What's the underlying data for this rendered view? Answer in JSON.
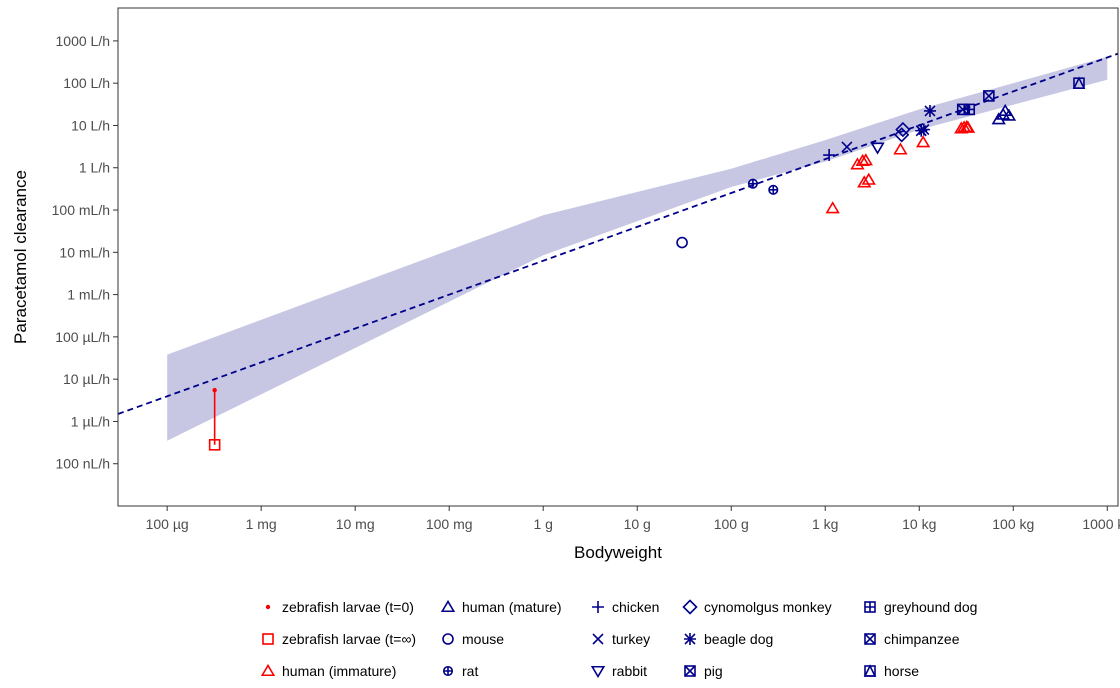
{
  "chart_data": {
    "type": "scatter",
    "title": "",
    "xlabel": "Bodyweight",
    "ylabel": "Paracetamol clearance",
    "x_scale": "log10",
    "y_scale": "log10",
    "x_unit": "kg",
    "y_unit": "L/h",
    "xlim": [
      3e-08,
      1300
    ],
    "ylim": [
      1e-08,
      6000
    ],
    "grid": false,
    "legend_position": "bottom",
    "x_ticks": [
      {
        "value": 1e-07,
        "label": "100 µg"
      },
      {
        "value": 1e-06,
        "label": "1 mg"
      },
      {
        "value": 1e-05,
        "label": "10 mg"
      },
      {
        "value": 0.0001,
        "label": "100 mg"
      },
      {
        "value": 0.001,
        "label": "1 g"
      },
      {
        "value": 0.01,
        "label": "10 g"
      },
      {
        "value": 0.1,
        "label": "100 g"
      },
      {
        "value": 1,
        "label": "1 kg"
      },
      {
        "value": 10,
        "label": "10 kg"
      },
      {
        "value": 100,
        "label": "100 kg"
      },
      {
        "value": 1000,
        "label": "1000 kg"
      }
    ],
    "y_ticks": [
      {
        "value": 1e-07,
        "label": "100 nL/h"
      },
      {
        "value": 1e-06,
        "label": "1 µL/h"
      },
      {
        "value": 1e-05,
        "label": "10 µL/h"
      },
      {
        "value": 0.0001,
        "label": "100 µL/h"
      },
      {
        "value": 0.001,
        "label": "1 mL/h"
      },
      {
        "value": 0.01,
        "label": "10 mL/h"
      },
      {
        "value": 0.1,
        "label": "100 mL/h"
      },
      {
        "value": 1,
        "label": "1 L/h"
      },
      {
        "value": 10,
        "label": "10 L/h"
      },
      {
        "value": 100,
        "label": "100 L/h"
      },
      {
        "value": 1000,
        "label": "1000 L/h"
      }
    ],
    "regression": {
      "style": "dashed",
      "color": "#00008B",
      "line": [
        {
          "x": 3e-08,
          "y": 1.5e-06
        },
        {
          "x": 1300,
          "y": 500
        }
      ],
      "band_color": "#9999CC",
      "band": [
        {
          "x": 1e-07,
          "lower": 3.5e-07,
          "upper": 3.8e-05
        },
        {
          "x": 0.001,
          "lower": 0.0085,
          "upper": 0.075
        },
        {
          "x": 0.1,
          "lower": 0.35,
          "upper": 0.95
        },
        {
          "x": 1,
          "lower": 1.4,
          "upper": 4.5
        },
        {
          "x": 10,
          "lower": 8,
          "upper": 24
        },
        {
          "x": 1000,
          "lower": 120,
          "upper": 420
        }
      ]
    },
    "connector": {
      "x": 3.2e-07,
      "y_from": 5.5e-06,
      "y_to": 2.8e-07,
      "color": "#FF0000"
    },
    "series": [
      {
        "name": "zebrafish larvae (t=0)",
        "marker": "dot",
        "color": "#FF0000",
        "points": [
          [
            3.2e-07,
            5.5e-06
          ]
        ]
      },
      {
        "name": "zebrafish larvae (t=∞)",
        "marker": "square",
        "color": "#FF0000",
        "points": [
          [
            3.2e-07,
            2.8e-07
          ]
        ]
      },
      {
        "name": "human (immature)",
        "marker": "triangle",
        "color": "#FF0000",
        "points": [
          [
            1.2,
            0.11
          ],
          [
            2.2,
            1.2
          ],
          [
            2.5,
            1.45
          ],
          [
            2.7,
            1.5
          ],
          [
            2.6,
            0.45
          ],
          [
            2.9,
            0.52
          ],
          [
            6.3,
            2.7
          ],
          [
            11,
            4.0
          ],
          [
            28,
            8.5
          ],
          [
            30,
            9.0
          ],
          [
            32,
            9.2
          ],
          [
            33,
            8.8
          ]
        ]
      },
      {
        "name": "human (mature)",
        "marker": "triangle",
        "color": "#00008B",
        "points": [
          [
            70,
            14
          ],
          [
            78,
            18
          ],
          [
            82,
            22
          ],
          [
            90,
            17
          ]
        ]
      },
      {
        "name": "mouse",
        "marker": "circle",
        "color": "#00008B",
        "points": [
          [
            0.03,
            0.017
          ]
        ]
      },
      {
        "name": "rat",
        "marker": "circle-plus",
        "color": "#00008B",
        "points": [
          [
            0.17,
            0.42
          ],
          [
            0.28,
            0.3
          ]
        ]
      },
      {
        "name": "chicken",
        "marker": "plus",
        "color": "#00008B",
        "points": [
          [
            1.1,
            2.0
          ]
        ]
      },
      {
        "name": "turkey",
        "marker": "cross",
        "color": "#00008B",
        "points": [
          [
            1.7,
            3.1
          ]
        ]
      },
      {
        "name": "rabbit",
        "marker": "triangle-down",
        "color": "#00008B",
        "points": [
          [
            3.6,
            3.0
          ]
        ]
      },
      {
        "name": "cynomolgus monkey",
        "marker": "diamond",
        "color": "#00008B",
        "points": [
          [
            6.5,
            6.0
          ],
          [
            6.7,
            8.0
          ]
        ]
      },
      {
        "name": "beagle dog",
        "marker": "asterisk",
        "color": "#00008B",
        "points": [
          [
            10.5,
            7.5
          ],
          [
            11.2,
            8.0
          ],
          [
            13,
            22
          ]
        ]
      },
      {
        "name": "pig",
        "marker": "square-x",
        "color": "#00008B",
        "points": [
          [
            29,
            24
          ]
        ]
      },
      {
        "name": "greyhound dog",
        "marker": "square-plus",
        "color": "#00008B",
        "points": [
          [
            34,
            24
          ]
        ]
      },
      {
        "name": "chimpanzee",
        "marker": "square-x",
        "color": "#00008B",
        "points": [
          [
            55,
            50
          ]
        ]
      },
      {
        "name": "horse",
        "marker": "square-triangle",
        "color": "#00008B",
        "points": [
          [
            500,
            100
          ]
        ]
      }
    ]
  }
}
